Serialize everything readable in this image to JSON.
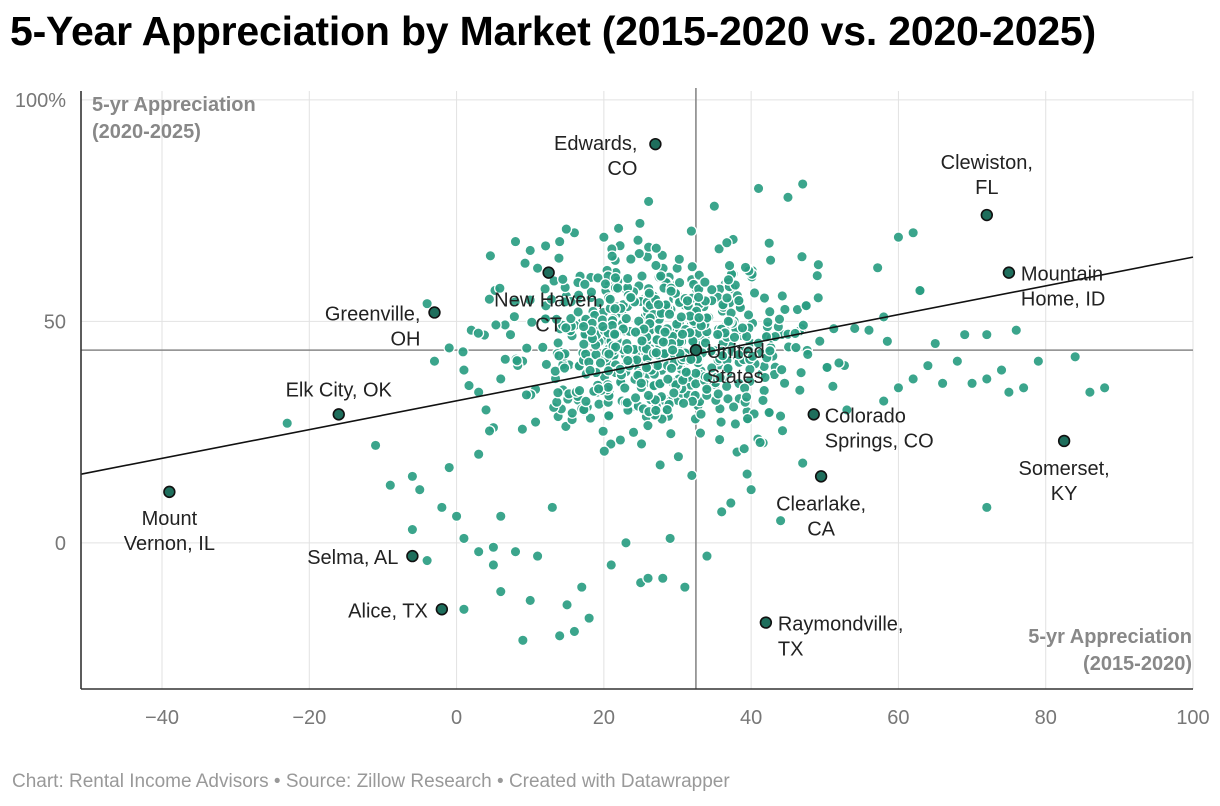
{
  "title": "5-Year Appreciation by Market (2015-2020 vs. 2020-2025)",
  "footer": "Chart: Rental Income Advisors • Source: Zillow Research • Created with Datawrapper",
  "colors": {
    "dot": "#2a9d82",
    "dot_stroke": "#ffffff",
    "highlight": "#1e6e5c",
    "highlight_stroke": "#111111",
    "trend": "#111111",
    "ref": "#888888",
    "grid": "#e2e2e2",
    "axis": "#333333"
  },
  "chart_data": {
    "type": "scatter",
    "title": "5-Year Appreciation by Market (2015-2020 vs. 2020-2025)",
    "xlabel": "5-yr Appreciation (2015-2020)",
    "ylabel": "5-yr Appreciation (2020-2025)",
    "x_ticks": [
      "−40",
      "−20",
      "0",
      "20",
      "40",
      "60",
      "80",
      "100"
    ],
    "y_ticks": [
      "100%",
      "50",
      "0"
    ],
    "xlim": [
      -51,
      100
    ],
    "ylim": [
      -33,
      102
    ],
    "grid": true,
    "reference_lines": {
      "x": 32.5,
      "y": 43.5
    },
    "trendline": {
      "x1": -51,
      "y1": 15.5,
      "x2": 100,
      "y2": 64.5
    },
    "highlighted_points": [
      {
        "label": "Edwards,\nCO",
        "x": 27,
        "y": 90
      },
      {
        "label": "Clewiston,\nFL",
        "x": 72,
        "y": 74
      },
      {
        "label": "Mountain\nHome, ID",
        "x": 75,
        "y": 61
      },
      {
        "label": "New Haven,\nCT",
        "x": 12.5,
        "y": 61
      },
      {
        "label": "Greenville,\nOH",
        "x": -3,
        "y": 52
      },
      {
        "label": "United\nStates",
        "x": 32.5,
        "y": 43.5
      },
      {
        "label": "Elk City, OK",
        "x": -16,
        "y": 29
      },
      {
        "label": "Colorado\nSprings, CO",
        "x": 48.5,
        "y": 29
      },
      {
        "label": "Somerset,\nKY",
        "x": 82.5,
        "y": 23
      },
      {
        "label": "Clearlake,\nCA",
        "x": 49.5,
        "y": 15
      },
      {
        "label": "Mount\nVernon, IL",
        "x": -39,
        "y": 11.5
      },
      {
        "label": "Selma, AL",
        "x": -6,
        "y": -3
      },
      {
        "label": "Alice, TX",
        "x": -2,
        "y": -15
      },
      {
        "label": "Raymondville,\nTX",
        "x": 42,
        "y": -18
      }
    ],
    "background_points_note": "About 900 additional unlabeled markets, densely clustered near x 15-45, y 25-65",
    "outer_points": [
      [
        -23,
        27
      ],
      [
        -11,
        22
      ],
      [
        -6,
        15
      ],
      [
        -5,
        12
      ],
      [
        -9,
        13
      ],
      [
        -6,
        3
      ],
      [
        -4,
        -4
      ],
      [
        -2,
        8
      ],
      [
        -1,
        17
      ],
      [
        0,
        6
      ],
      [
        1,
        1
      ],
      [
        1,
        -15
      ],
      [
        3,
        -2
      ],
      [
        3,
        20
      ],
      [
        5,
        -1
      ],
      [
        5,
        -5
      ],
      [
        6,
        6
      ],
      [
        6,
        -11
      ],
      [
        8,
        -2
      ],
      [
        9,
        -22
      ],
      [
        10,
        -13
      ],
      [
        11,
        -3
      ],
      [
        13,
        8
      ],
      [
        14,
        -21
      ],
      [
        15,
        -14
      ],
      [
        16,
        -20
      ],
      [
        17,
        -10
      ],
      [
        18,
        -17
      ],
      [
        21,
        -5
      ],
      [
        23,
        0
      ],
      [
        25,
        -9
      ],
      [
        26,
        -8
      ],
      [
        28,
        -8
      ],
      [
        29,
        1
      ],
      [
        31,
        -10
      ],
      [
        34,
        -3
      ],
      [
        36,
        7
      ],
      [
        40,
        12
      ],
      [
        44,
        5
      ],
      [
        47,
        18
      ],
      [
        53,
        30
      ],
      [
        58,
        32
      ],
      [
        60,
        35
      ],
      [
        62,
        37
      ],
      [
        64,
        40
      ],
      [
        66,
        36
      ],
      [
        68,
        41
      ],
      [
        70,
        36
      ],
      [
        72,
        37
      ],
      [
        72,
        8
      ],
      [
        74,
        39
      ],
      [
        75,
        34
      ],
      [
        77,
        35
      ],
      [
        79,
        41
      ],
      [
        84,
        42
      ],
      [
        86,
        34
      ],
      [
        88,
        35
      ],
      [
        56,
        48
      ],
      [
        58,
        51
      ],
      [
        63,
        57
      ],
      [
        65,
        45
      ],
      [
        69,
        47
      ],
      [
        72,
        47
      ],
      [
        76,
        48
      ],
      [
        60,
        69
      ],
      [
        62,
        70
      ],
      [
        45,
        78
      ],
      [
        47,
        81
      ],
      [
        35,
        76
      ],
      [
        41,
        80
      ],
      [
        8,
        68
      ],
      [
        10,
        66
      ],
      [
        11,
        62
      ],
      [
        14,
        68
      ],
      [
        16,
        70
      ],
      [
        20,
        69
      ],
      [
        22,
        71
      ],
      [
        -4,
        54
      ],
      [
        -3,
        41
      ],
      [
        -1,
        44
      ],
      [
        1,
        39
      ],
      [
        2,
        48
      ],
      [
        3,
        34
      ],
      [
        4,
        30
      ],
      [
        5,
        26
      ],
      [
        6,
        37
      ]
    ],
    "cluster": {
      "center": [
        28,
        45
      ],
      "spread": [
        10,
        11
      ],
      "count": 720
    }
  }
}
